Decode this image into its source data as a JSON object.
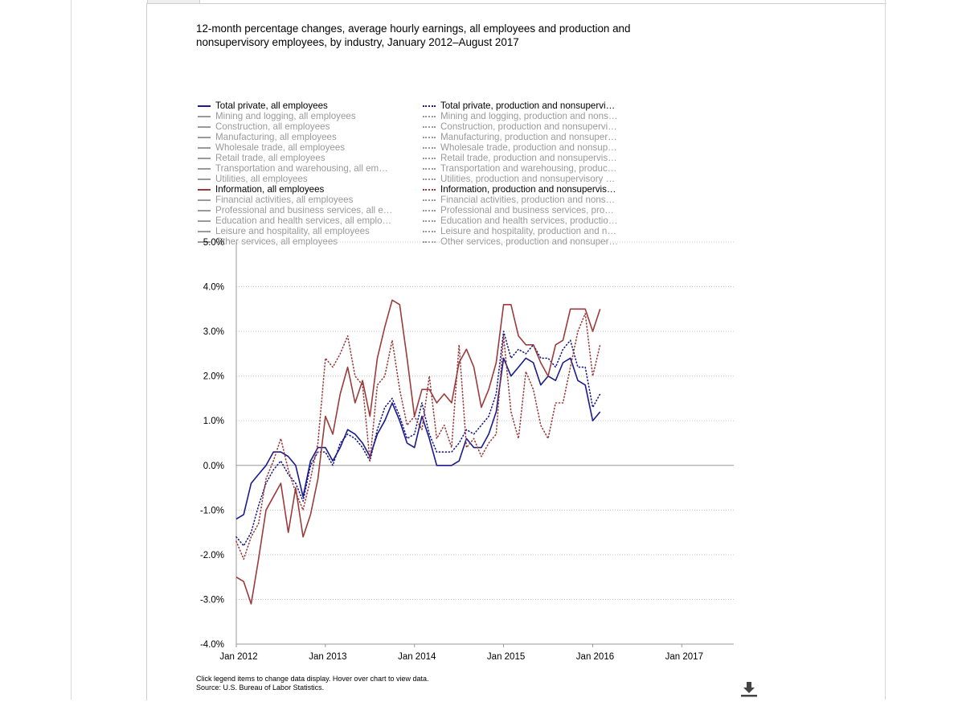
{
  "title": "12-month percentage changes, average hourly earnings, all employees and production and nonsupervisory employees, by industry, January 2012–August 2017",
  "footnote": {
    "line1": "Click legend items to change data display. Hover over chart to view data.",
    "line2": "Source: U.S. Bureau of Labor Statistics."
  },
  "download_icon": "download-icon",
  "colors": {
    "total_private": "#1a1a8c",
    "information": "#9b3b3b",
    "inactive": "#999999",
    "axis": "#999999",
    "grid": "#c8c8c8"
  },
  "legend": {
    "left": [
      {
        "label": "Total private, all employees",
        "active": true,
        "color": "#1a1a8c"
      },
      {
        "label": "Mining and logging, all employees",
        "active": false
      },
      {
        "label": "Construction, all employees",
        "active": false
      },
      {
        "label": "Manufacturing, all employees",
        "active": false
      },
      {
        "label": "Wholesale trade, all employees",
        "active": false
      },
      {
        "label": "Retail trade, all employees",
        "active": false
      },
      {
        "label": "Transportation and warehousing, all em…",
        "active": false
      },
      {
        "label": "Utilities, all employees",
        "active": false
      },
      {
        "label": "Information, all employees",
        "active": true,
        "color": "#9b3b3b"
      },
      {
        "label": "Financial activities, all employees",
        "active": false
      },
      {
        "label": "Professional and business services, all e…",
        "active": false
      },
      {
        "label": "Education and health services, all emplo…",
        "active": false
      },
      {
        "label": "Leisure and hospitality, all employees",
        "active": false
      },
      {
        "label": "Other services, all employees",
        "active": false
      }
    ],
    "right": [
      {
        "label": "Total private, production and nonsupervi…",
        "active": true,
        "color": "#1a1a8c"
      },
      {
        "label": "Mining and logging, production and nons…",
        "active": false
      },
      {
        "label": "Construction, production and nonsupervi…",
        "active": false
      },
      {
        "label": "Manufacturing, production and nonsuper…",
        "active": false
      },
      {
        "label": "Wholesale trade, production and nonsup…",
        "active": false
      },
      {
        "label": "Retail trade, production and nonsupervis…",
        "active": false
      },
      {
        "label": "Transportation and warehousing, produc…",
        "active": false
      },
      {
        "label": "Utilities, production and nonsupervisory …",
        "active": false
      },
      {
        "label": "Information, production and nonsupervis…",
        "active": true,
        "color": "#9b3b3b"
      },
      {
        "label": "Financial activities, production and nons…",
        "active": false
      },
      {
        "label": "Professional and business services, pro…",
        "active": false
      },
      {
        "label": "Education and health services, productio…",
        "active": false
      },
      {
        "label": "Leisure and hospitality, production and n…",
        "active": false
      },
      {
        "label": "Other services, production and nonsuper…",
        "active": false
      }
    ]
  },
  "chart_data": {
    "type": "line",
    "title": "12-month percentage changes, average hourly earnings, all employees and production and nonsupervisory employees, by industry, January 2012–August 2017",
    "xlabel": "",
    "ylabel": "",
    "x_start": "2012-01",
    "x_ticks": [
      "Jan 2012",
      "Jan 2013",
      "Jan 2014",
      "Jan 2015",
      "Jan 2016",
      "Jan 2017"
    ],
    "y_ticks": [
      "5.0%",
      "4.0%",
      "3.0%",
      "2.0%",
      "1.0%",
      "0.0%",
      "-1.0%",
      "-2.0%",
      "-3.0%",
      "-4.0%"
    ],
    "ylim": [
      -4,
      5
    ],
    "xlim": [
      "2012-01",
      "2017-08"
    ],
    "grid": true,
    "legend_position": "top",
    "series": [
      {
        "name": "Total private, all employees",
        "style": "solid",
        "color": "#1a1a8c",
        "values": [
          -1.2,
          -1.1,
          -0.4,
          -0.2,
          0.0,
          0.3,
          0.3,
          0.2,
          0.0,
          -0.7,
          0.1,
          0.4,
          0.4,
          0.1,
          0.4,
          0.8,
          0.7,
          0.5,
          0.2,
          0.7,
          1.0,
          1.4,
          1.0,
          0.5,
          0.4,
          1.1,
          0.6,
          0.0,
          0.0,
          0.0,
          0.1,
          0.6,
          0.4,
          0.4,
          0.7,
          1.2,
          2.4,
          2.0,
          2.2,
          2.4,
          2.3,
          1.8,
          2.0,
          1.9,
          2.3,
          2.4,
          1.9,
          1.8,
          1.0,
          1.2
        ]
      },
      {
        "name": "Total private, production and nonsupervisory employees",
        "style": "dotted",
        "color": "#1a1a8c",
        "values": [
          -1.6,
          -1.8,
          -1.5,
          -0.9,
          -0.4,
          -0.1,
          0.1,
          -0.2,
          -0.4,
          -0.8,
          0.0,
          0.3,
          0.3,
          0.0,
          0.5,
          0.7,
          0.6,
          0.4,
          0.1,
          0.8,
          1.3,
          1.5,
          1.1,
          0.6,
          0.7,
          1.4,
          0.7,
          0.3,
          0.3,
          0.3,
          0.5,
          0.8,
          0.7,
          0.9,
          1.1,
          1.6,
          3.0,
          2.4,
          2.6,
          2.5,
          2.7,
          2.4,
          2.4,
          2.2,
          2.6,
          2.8,
          2.2,
          2.2,
          1.3,
          1.6
        ]
      },
      {
        "name": "Information, all employees",
        "style": "solid",
        "color": "#9b3b3b",
        "values": [
          -2.5,
          -2.6,
          -3.1,
          -2.1,
          -1.0,
          -0.7,
          -0.4,
          -1.5,
          -0.5,
          -1.6,
          -1.1,
          -0.3,
          1.1,
          0.7,
          1.6,
          2.2,
          1.4,
          1.9,
          1.1,
          2.4,
          3.1,
          3.7,
          3.6,
          2.4,
          1.1,
          1.7,
          1.7,
          1.4,
          1.6,
          1.4,
          2.3,
          2.6,
          2.2,
          1.3,
          1.7,
          2.3,
          3.6,
          3.6,
          2.9,
          2.7,
          2.7,
          2.3,
          2.0,
          2.7,
          2.8,
          3.5,
          3.5,
          3.5,
          3.0,
          3.5
        ]
      },
      {
        "name": "Information, production and nonsupervisory employees",
        "style": "dotted",
        "color": "#9b3b3b",
        "values": [
          -1.7,
          -2.1,
          -1.6,
          -1.3,
          -0.3,
          0.1,
          0.6,
          -0.1,
          -0.6,
          -1.0,
          -0.3,
          0.5,
          2.4,
          2.2,
          2.5,
          2.9,
          2.0,
          1.8,
          0.1,
          1.8,
          2.0,
          2.8,
          1.7,
          0.9,
          1.1,
          0.8,
          2.0,
          0.6,
          0.9,
          0.4,
          2.7,
          0.4,
          0.6,
          0.2,
          0.5,
          0.7,
          2.9,
          1.2,
          0.6,
          2.1,
          1.7,
          0.9,
          0.6,
          1.4,
          1.4,
          2.2,
          3.0,
          3.4,
          2.0,
          2.7
        ]
      }
    ]
  }
}
